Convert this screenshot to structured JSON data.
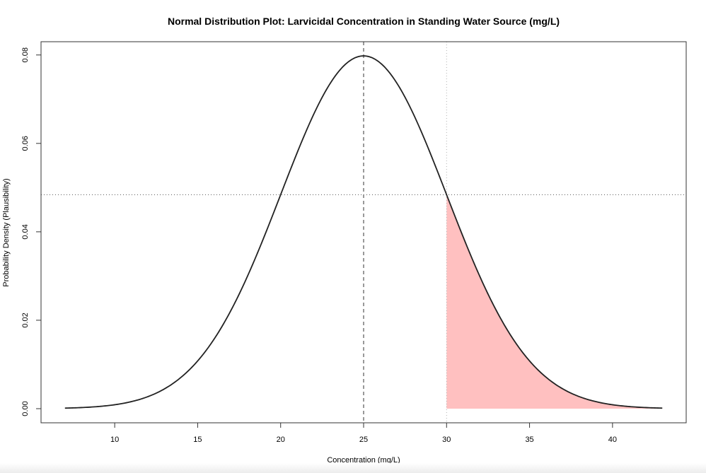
{
  "chart_data": {
    "type": "line",
    "title": "Normal Distribution Plot: Larvicidal Concentration in Standing Water Source (mg/L)",
    "xlabel": "Concentration (mg/L)",
    "ylabel": "Probability Density (Plausibility)",
    "distribution": {
      "mean": 25,
      "sd": 5
    },
    "curve_range": [
      7,
      43
    ],
    "xlim": [
      5.56,
      44.44
    ],
    "ylim": [
      -0.0032,
      0.083
    ],
    "xticks": [
      10,
      15,
      20,
      25,
      30,
      35,
      40
    ],
    "xtick_labels": [
      "10",
      "15",
      "20",
      "25",
      "30",
      "35",
      "40"
    ],
    "yticks": [
      0.0,
      0.02,
      0.04,
      0.06,
      0.08
    ],
    "ytick_labels": [
      "0.00",
      "0.02",
      "0.04",
      "0.06",
      "0.08"
    ],
    "shaded_region": {
      "from": 30,
      "to": 43,
      "color": "#ffc0c0"
    },
    "reference_lines": {
      "mean_vertical": 25,
      "threshold_vertical": 30,
      "threshold_density_horizontal": 0.0484
    },
    "grid": false,
    "legend": "none",
    "colors": {
      "curve": "#222222",
      "mean_line": "#999999",
      "threshold_line": "#b0b0b0",
      "shade": "#ffc0c0"
    }
  }
}
